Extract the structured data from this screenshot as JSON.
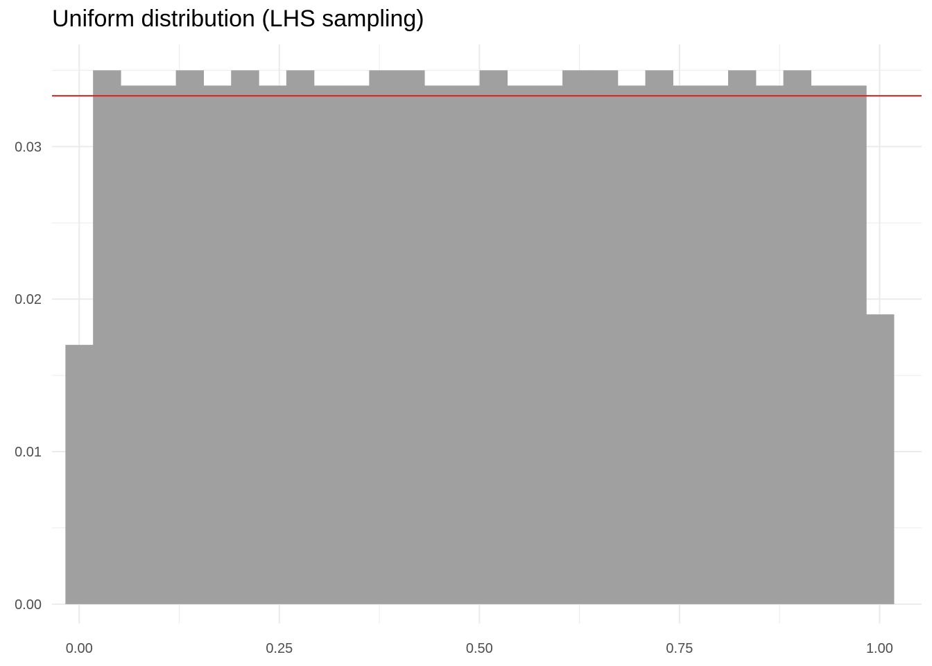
{
  "chart_data": {
    "type": "bar",
    "subtype": "histogram",
    "title": "Uniform distribution (LHS sampling)",
    "xlabel": "",
    "ylabel": "",
    "bin_width": 0.0345,
    "bins": [
      {
        "center": 0.0,
        "density": 0.017
      },
      {
        "center": 0.0345,
        "density": 0.035
      },
      {
        "center": 0.069,
        "density": 0.034
      },
      {
        "center": 0.1035,
        "density": 0.034
      },
      {
        "center": 0.138,
        "density": 0.035
      },
      {
        "center": 0.1725,
        "density": 0.034
      },
      {
        "center": 0.207,
        "density": 0.035
      },
      {
        "center": 0.2415,
        "density": 0.034
      },
      {
        "center": 0.276,
        "density": 0.035
      },
      {
        "center": 0.3105,
        "density": 0.034
      },
      {
        "center": 0.345,
        "density": 0.034
      },
      {
        "center": 0.3795,
        "density": 0.035
      },
      {
        "center": 0.414,
        "density": 0.035
      },
      {
        "center": 0.4485,
        "density": 0.034
      },
      {
        "center": 0.483,
        "density": 0.034
      },
      {
        "center": 0.5175,
        "density": 0.035
      },
      {
        "center": 0.552,
        "density": 0.034
      },
      {
        "center": 0.5865,
        "density": 0.034
      },
      {
        "center": 0.621,
        "density": 0.035
      },
      {
        "center": 0.6555,
        "density": 0.035
      },
      {
        "center": 0.69,
        "density": 0.034
      },
      {
        "center": 0.7245,
        "density": 0.035
      },
      {
        "center": 0.759,
        "density": 0.034
      },
      {
        "center": 0.7935,
        "density": 0.034
      },
      {
        "center": 0.828,
        "density": 0.035
      },
      {
        "center": 0.8625,
        "density": 0.034
      },
      {
        "center": 0.897,
        "density": 0.035
      },
      {
        "center": 0.9315,
        "density": 0.034
      },
      {
        "center": 0.966,
        "density": 0.034
      },
      {
        "center": 1.0005,
        "density": 0.019
      }
    ],
    "reference_line": {
      "y": 0.03333,
      "color": "#e41a1c"
    },
    "x_ticks": [
      0.0,
      0.25,
      0.5,
      0.75,
      1.0
    ],
    "x_tick_labels": [
      "0.00",
      "0.25",
      "0.50",
      "0.75",
      "1.00"
    ],
    "y_ticks": [
      0.0,
      0.01,
      0.02,
      0.03
    ],
    "y_tick_labels": [
      "0.00",
      "0.01",
      "0.02",
      "0.03"
    ],
    "xlim": [
      -0.034,
      1.0525
    ],
    "ylim": [
      -0.00128,
      0.0367
    ],
    "grid": true,
    "bar_color": "#a0a0a0",
    "grid_color": "#ebebeb"
  }
}
